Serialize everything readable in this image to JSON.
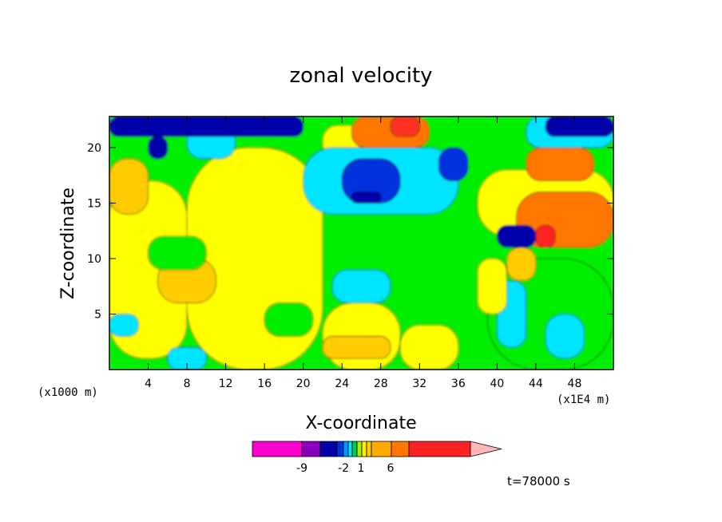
{
  "chart_data": {
    "type": "heatmap",
    "title": "zonal velocity",
    "xlabel": "X-coordinate",
    "ylabel": "Z-coordinate",
    "x_unit_label": "(x1000 m)",
    "x_unit_label2": "(x1E4 m)",
    "xlim": [
      0,
      52
    ],
    "ylim": [
      0,
      22.8
    ],
    "x_ticks": [
      {
        "value": 4,
        "label": "4"
      },
      {
        "value": 8,
        "label": "8"
      },
      {
        "value": 12,
        "label": "12"
      },
      {
        "value": 16,
        "label": "16"
      },
      {
        "value": 20,
        "label": "20"
      },
      {
        "value": 24,
        "label": "24"
      },
      {
        "value": 28,
        "label": "28"
      },
      {
        "value": 32,
        "label": "32"
      },
      {
        "value": 36,
        "label": "36"
      },
      {
        "value": 40,
        "label": "40"
      },
      {
        "value": 44,
        "label": "44"
      },
      {
        "value": 48,
        "label": "48"
      }
    ],
    "y_ticks": [
      {
        "value": 5,
        "label": "5"
      },
      {
        "value": 10,
        "label": "10"
      },
      {
        "value": 15,
        "label": "15"
      },
      {
        "value": 20,
        "label": "20"
      }
    ],
    "legend": {
      "placement": "bottom",
      "colors": [
        "#ff00cc",
        "#8800bb",
        "#0000aa",
        "#0033dd",
        "#0099ff",
        "#00e5ff",
        "#00cc55",
        "#aaee00",
        "#ffee00",
        "#ffcc00",
        "#ffaa00",
        "#ff7700",
        "#ff2222",
        "#ff8877",
        "#ffb6b6"
      ],
      "tick_labels": [
        {
          "label": "-9",
          "index": 1
        },
        {
          "label": "-2",
          "index": 5
        },
        {
          "label": "1",
          "index": 7
        },
        {
          "label": "6",
          "index": 11
        }
      ]
    },
    "time_label": "t=78000 s",
    "regions": [
      {
        "value": 0,
        "x": [
          0,
          52
        ],
        "y": [
          0,
          22.8
        ]
      },
      {
        "value": 1,
        "x": [
          0,
          8
        ],
        "y": [
          1,
          17
        ]
      },
      {
        "value": 1,
        "x": [
          8,
          22
        ],
        "y": [
          0,
          20
        ]
      },
      {
        "value": 1,
        "x": [
          22,
          30
        ],
        "y": [
          0,
          6
        ]
      },
      {
        "value": 1,
        "x": [
          30,
          36
        ],
        "y": [
          0,
          4
        ]
      },
      {
        "value": 1,
        "x": [
          22,
          27
        ],
        "y": [
          19,
          22
        ]
      },
      {
        "value": 2,
        "x": [
          0,
          4
        ],
        "y": [
          14,
          19
        ]
      },
      {
        "value": 2,
        "x": [
          5,
          11
        ],
        "y": [
          6,
          10
        ]
      },
      {
        "value": 2,
        "x": [
          22,
          29
        ],
        "y": [
          1,
          3
        ]
      },
      {
        "value": 0,
        "x": [
          4,
          10
        ],
        "y": [
          9,
          12
        ]
      },
      {
        "value": 0,
        "x": [
          16,
          21
        ],
        "y": [
          3,
          6
        ]
      },
      {
        "value": -1,
        "x": [
          0,
          3
        ],
        "y": [
          3,
          5
        ]
      },
      {
        "value": -1,
        "x": [
          6,
          10
        ],
        "y": [
          0,
          2
        ]
      },
      {
        "value": -1,
        "x": [
          23,
          29
        ],
        "y": [
          6,
          9
        ]
      },
      {
        "value": -1,
        "x": [
          20,
          36
        ],
        "y": [
          14,
          20
        ]
      },
      {
        "value": -1,
        "x": [
          8,
          13
        ],
        "y": [
          19,
          22
        ]
      },
      {
        "value": -2,
        "x": [
          24,
          30
        ],
        "y": [
          15,
          19
        ]
      },
      {
        "value": -2,
        "x": [
          34,
          37
        ],
        "y": [
          17,
          20
        ]
      },
      {
        "value": -3,
        "x": [
          25,
          28
        ],
        "y": [
          15,
          16
        ]
      },
      {
        "value": 3,
        "x": [
          25,
          33
        ],
        "y": [
          20,
          22.8
        ]
      },
      {
        "value": 4,
        "x": [
          29,
          32
        ],
        "y": [
          21,
          22.8
        ]
      },
      {
        "value": -3,
        "x": [
          0,
          20
        ],
        "y": [
          21,
          22.8
        ]
      },
      {
        "value": -3,
        "x": [
          4,
          6
        ],
        "y": [
          19,
          21
        ]
      },
      {
        "value": 1,
        "x": [
          38,
          52
        ],
        "y": [
          12,
          18
        ]
      },
      {
        "value": 3,
        "x": [
          42,
          52
        ],
        "y": [
          11,
          16
        ]
      },
      {
        "value": 3,
        "x": [
          43,
          50
        ],
        "y": [
          17,
          20
        ]
      },
      {
        "value": -3,
        "x": [
          40,
          44
        ],
        "y": [
          11,
          13
        ]
      },
      {
        "value": -1,
        "x": [
          43,
          52
        ],
        "y": [
          20,
          22.8
        ]
      },
      {
        "value": -3,
        "x": [
          45,
          52
        ],
        "y": [
          21,
          22.8
        ]
      },
      {
        "value": 5,
        "x": [
          44,
          46
        ],
        "y": [
          11,
          13
        ]
      },
      {
        "value": 0,
        "x": [
          39,
          52
        ],
        "y": [
          0,
          10
        ]
      },
      {
        "value": -1,
        "x": [
          40,
          43
        ],
        "y": [
          2,
          8
        ]
      },
      {
        "value": -1,
        "x": [
          45,
          49
        ],
        "y": [
          1,
          5
        ]
      },
      {
        "value": 1,
        "x": [
          38,
          41
        ],
        "y": [
          5,
          10
        ]
      },
      {
        "value": 2,
        "x": [
          41,
          44
        ],
        "y": [
          8,
          11
        ]
      }
    ]
  }
}
